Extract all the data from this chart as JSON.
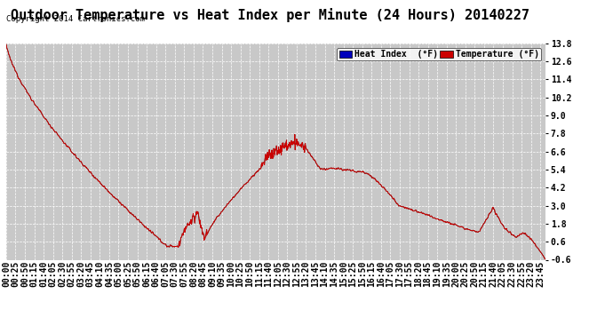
{
  "title": "Outdoor Temperature vs Heat Index per Minute (24 Hours) 20140227",
  "copyright_text": "Copyright 2014 Cartronics.com",
  "ylabel_right_ticks": [
    13.8,
    12.6,
    11.4,
    10.2,
    9.0,
    7.8,
    6.6,
    5.4,
    4.2,
    3.0,
    1.8,
    0.6,
    -0.6
  ],
  "ymin": -0.6,
  "ymax": 13.8,
  "legend_heat_index_bg": "#0000bb",
  "legend_temp_bg": "#cc0000",
  "line_color_heat": "#000000",
  "line_color_temp": "#cc0000",
  "background_color": "#ffffff",
  "plot_bg_color": "#c8c8c8",
  "grid_color": "#ffffff",
  "title_fontsize": 11,
  "tick_fontsize": 7,
  "legend_fontsize": 7,
  "copyright_fontsize": 6.5,
  "n_minutes": 1440,
  "tick_interval_minutes": 25
}
